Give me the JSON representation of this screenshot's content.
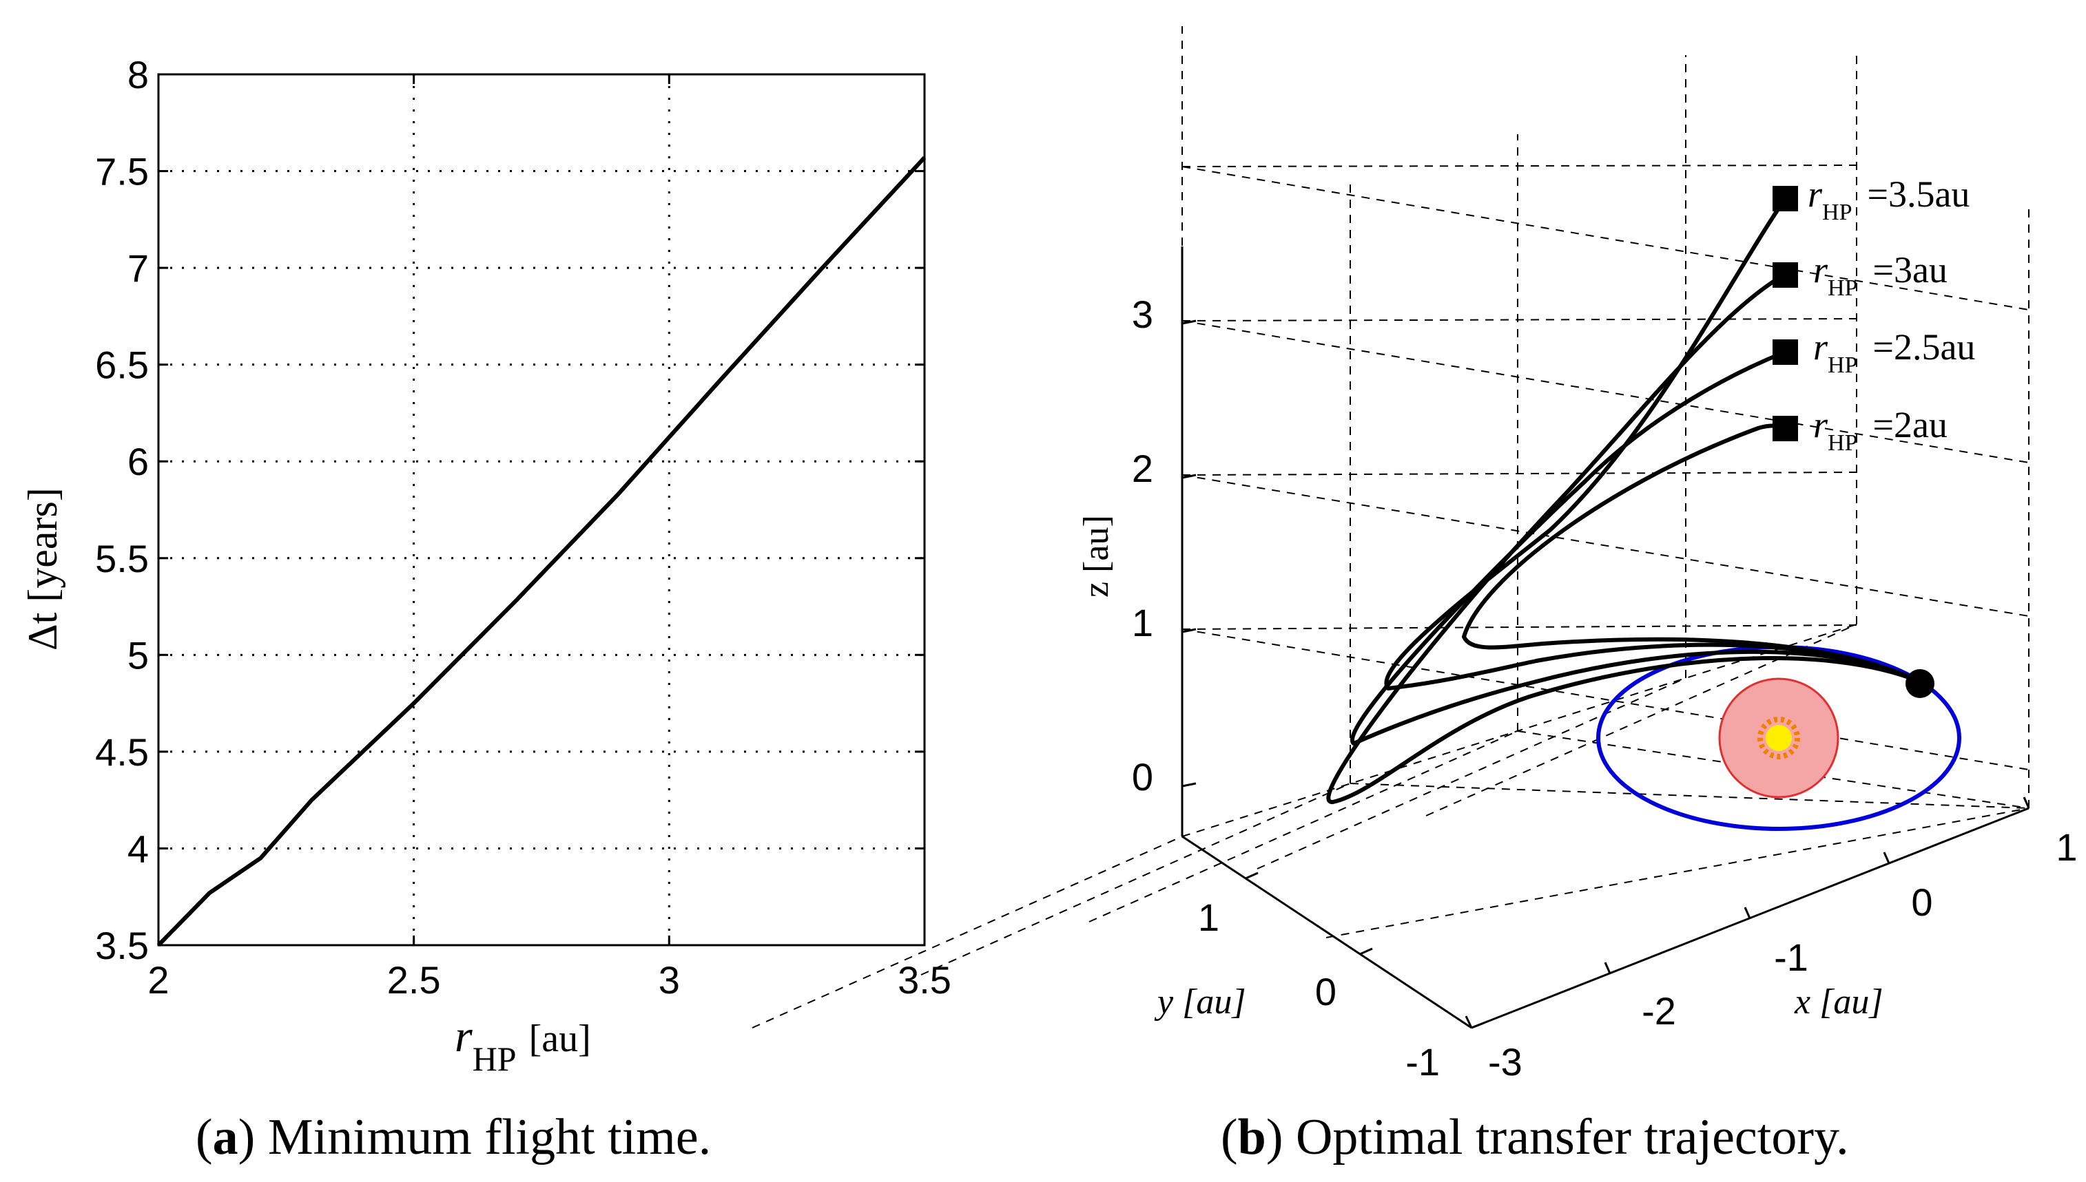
{
  "chart_data": [
    {
      "type": "line",
      "panel_label": "a",
      "caption": "Minimum flight time.",
      "xlabel_symbol": "r",
      "xlabel_subscript": "HP",
      "xlabel_unit": "[au]",
      "ylabel": "Δt [years]",
      "xlim": [
        2,
        3.5
      ],
      "ylim": [
        3.5,
        8
      ],
      "xticks": [
        "2",
        "2.5",
        "3",
        "3.5"
      ],
      "yticks": [
        "3.5",
        "4",
        "4.5",
        "5",
        "5.5",
        "6",
        "6.5",
        "7",
        "7.5",
        "8"
      ],
      "grid": true,
      "x": [
        2.0,
        2.1,
        2.2,
        2.3,
        2.5,
        2.7,
        2.9,
        3.1,
        3.3,
        3.5
      ],
      "y": [
        3.5,
        3.77,
        3.95,
        4.25,
        4.75,
        5.28,
        5.83,
        6.42,
        7.0,
        7.57
      ],
      "line_color": "#000000"
    },
    {
      "type": "line3d",
      "panel_label": "b",
      "caption": "Optimal transfer trajectory.",
      "xlabel": "x [au]",
      "ylabel": "y [au]",
      "zlabel": "z [au]",
      "xticks": [
        "-3",
        "-2",
        "-1",
        "0",
        "1"
      ],
      "yticks": [
        "-1",
        "0",
        "1"
      ],
      "zticks": [
        "0",
        "1",
        "2",
        "3"
      ],
      "grid": true,
      "legend_labels": [
        "r_HP =3.5au",
        "r_HP =3au",
        "r_HP =2.5au",
        "r_HP =2au"
      ],
      "label_symbol": "r",
      "label_subscript": "HP",
      "label_values": [
        "=3.5au",
        "=3au",
        "=2.5au",
        "=2au"
      ],
      "earth_orbit_color": "#0000dd",
      "sun_region_fill": "#f4a6a6",
      "sun_region_stroke": "#e03030",
      "sun_color": "#ffee00",
      "sun_ray_color": "#f08000"
    }
  ]
}
